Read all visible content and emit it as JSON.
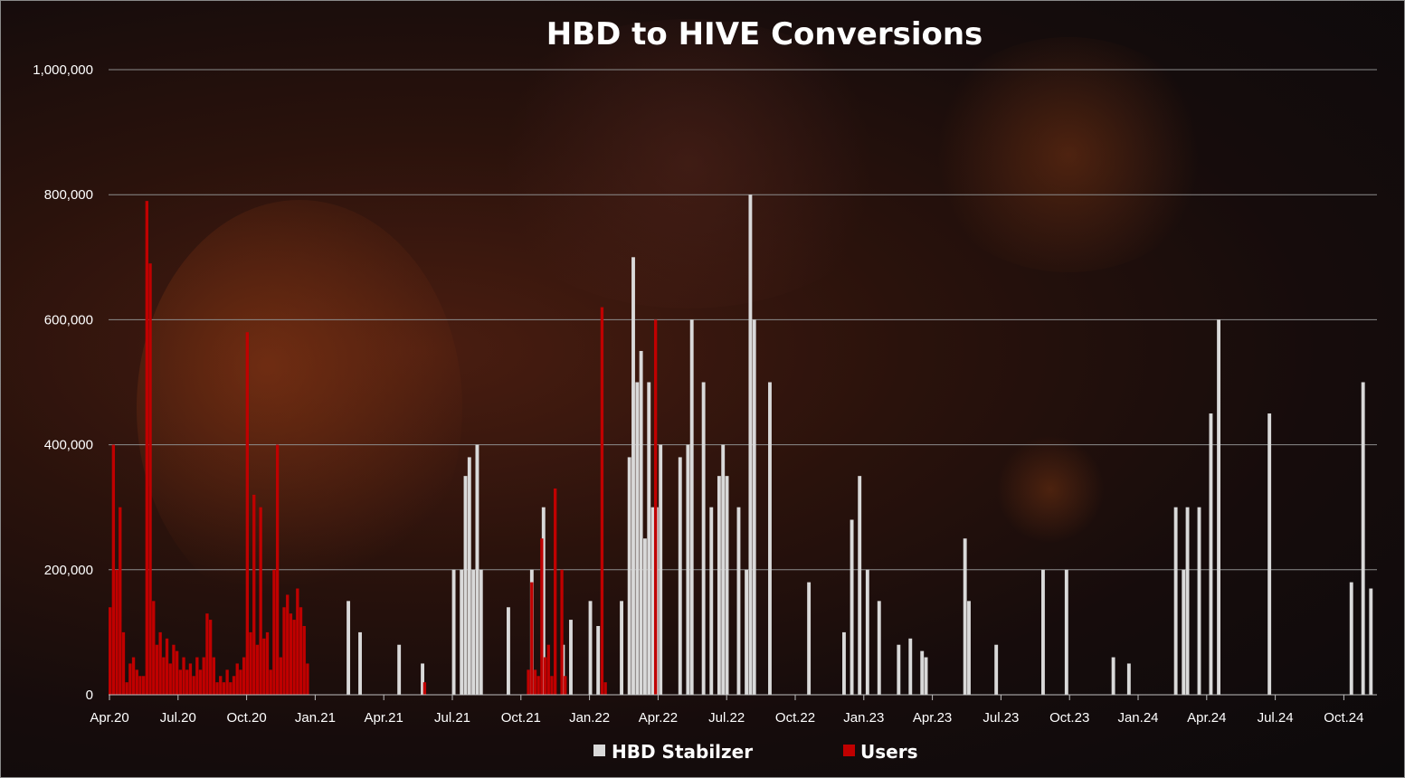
{
  "chart_data": {
    "type": "bar",
    "title": "HBD to HIVE Conversions",
    "xlabel": "",
    "ylabel": "",
    "ylim": [
      0,
      1000000
    ],
    "y_ticks": [
      "0",
      "200,000",
      "400,000",
      "600,000",
      "800,000",
      "1,000,000"
    ],
    "x_ticks": [
      "Apr.20",
      "Jul.20",
      "Oct.20",
      "Jan.21",
      "Apr.21",
      "Jul.21",
      "Oct.21",
      "Jan.22",
      "Apr.22",
      "Jul.22",
      "Oct.22",
      "Jan.23",
      "Apr.23",
      "Jul.23",
      "Oct.23",
      "Jan.24",
      "Apr.24",
      "Jul.24",
      "Oct.24"
    ],
    "grid": true,
    "legend_position": "bottom",
    "series": [
      {
        "name": "HBD Stabilzer",
        "color": "#d9d9d9",
        "approx_period_values": [
          0,
          0,
          0,
          0,
          0,
          0,
          0,
          0,
          0,
          0,
          0,
          0,
          0,
          0,
          0,
          0,
          0,
          0,
          0,
          0,
          0,
          0,
          0,
          0,
          0,
          0,
          0,
          0,
          0,
          0,
          0,
          0,
          0,
          0,
          0,
          0,
          0,
          0,
          0,
          0,
          0,
          0,
          0,
          0,
          0,
          0,
          0,
          0,
          0,
          0,
          0,
          0,
          0,
          0,
          0,
          0,
          0,
          0,
          0,
          0,
          0,
          150000,
          0,
          0,
          100000,
          0,
          0,
          0,
          0,
          0,
          0,
          0,
          0,
          0,
          80000,
          0,
          0,
          0,
          0,
          0,
          50000,
          0,
          0,
          0,
          0,
          0,
          0,
          0,
          200000,
          0,
          200000,
          350000,
          380000,
          200000,
          400000,
          200000,
          0,
          0,
          0,
          0,
          0,
          0,
          140000,
          0,
          0,
          0,
          0,
          0,
          200000,
          0,
          0,
          300000,
          0,
          0,
          0,
          0,
          80000,
          0,
          120000,
          0,
          0,
          0,
          0,
          150000,
          0,
          110000,
          0,
          0,
          0,
          0,
          0,
          150000,
          0,
          380000,
          700000,
          500000,
          550000,
          250000,
          500000,
          300000,
          300000,
          400000,
          0,
          0,
          0,
          0,
          380000,
          0,
          400000,
          600000,
          0,
          0,
          500000,
          0,
          300000,
          0,
          350000,
          400000,
          350000,
          0,
          0,
          300000,
          0,
          200000,
          800000,
          600000,
          0,
          0,
          0,
          500000,
          0,
          0,
          0,
          0,
          0,
          0,
          0,
          0,
          0,
          180000,
          0,
          0,
          0,
          0,
          0,
          0,
          0,
          0,
          100000,
          0,
          280000,
          0,
          350000,
          0,
          200000,
          0,
          0,
          150000,
          0,
          0,
          0,
          0,
          80000,
          0,
          0,
          90000,
          0,
          0,
          70000,
          60000,
          0,
          0,
          0,
          0,
          0,
          0,
          0,
          0,
          0,
          250000,
          150000,
          0,
          0,
          0,
          0,
          0,
          0,
          80000,
          0,
          0,
          0,
          0,
          0,
          0,
          0,
          0,
          0,
          0,
          0,
          200000,
          0,
          0,
          0,
          0,
          0,
          200000,
          0,
          0,
          0,
          0,
          0,
          0,
          0,
          0,
          0,
          0,
          0,
          60000,
          0,
          0,
          0,
          50000,
          0,
          0,
          0,
          0,
          0,
          0,
          0,
          0,
          0,
          0,
          0,
          300000,
          0,
          200000,
          300000,
          0,
          0,
          300000,
          0,
          0,
          450000,
          0,
          600000,
          0,
          0,
          0,
          0,
          0,
          0,
          0,
          0,
          0,
          0,
          0,
          0,
          450000,
          0,
          0,
          0,
          0,
          0,
          0,
          0,
          0,
          0,
          0,
          0,
          0,
          0,
          0,
          0,
          0,
          0,
          0,
          0,
          0,
          180000,
          0,
          0,
          500000,
          0,
          170000,
          0
        ]
      },
      {
        "name": "Users",
        "color": "#c00000",
        "approx_period_values": [
          140000,
          400000,
          200000,
          300000,
          100000,
          20000,
          50000,
          60000,
          40000,
          30000,
          30000,
          790000,
          690000,
          150000,
          80000,
          100000,
          60000,
          90000,
          50000,
          80000,
          70000,
          40000,
          60000,
          40000,
          50000,
          30000,
          60000,
          40000,
          60000,
          130000,
          120000,
          60000,
          20000,
          30000,
          20000,
          40000,
          20000,
          30000,
          50000,
          40000,
          60000,
          580000,
          100000,
          320000,
          80000,
          300000,
          90000,
          100000,
          40000,
          200000,
          400000,
          60000,
          140000,
          160000,
          130000,
          120000,
          170000,
          140000,
          110000,
          50000,
          0,
          0,
          0,
          0,
          0,
          0,
          0,
          0,
          0,
          0,
          0,
          0,
          0,
          0,
          0,
          0,
          0,
          0,
          0,
          0,
          0,
          0,
          0,
          0,
          0,
          0,
          0,
          0,
          0,
          0,
          0,
          0,
          0,
          0,
          20000,
          0,
          0,
          0,
          0,
          0,
          0,
          0,
          0,
          0,
          0,
          0,
          0,
          0,
          0,
          0,
          0,
          0,
          0,
          0,
          0,
          0,
          0,
          0,
          0,
          0,
          0,
          0,
          0,
          0,
          0,
          40000,
          180000,
          40000,
          30000,
          250000,
          60000,
          80000,
          30000,
          330000,
          0,
          200000,
          30000,
          0,
          0,
          0,
          0,
          0,
          0,
          0,
          0,
          0,
          0,
          620000,
          20000,
          0,
          0,
          0,
          0,
          0,
          0,
          0,
          0,
          0,
          0,
          0,
          0,
          0,
          0,
          600000,
          0,
          0,
          0,
          0,
          0,
          0,
          0,
          0,
          0,
          0,
          0,
          0,
          0,
          0,
          0,
          0,
          0,
          0,
          0,
          0,
          0,
          0,
          0,
          0,
          0,
          0,
          0,
          0,
          0,
          0,
          0,
          0,
          0,
          0,
          0,
          0,
          0,
          0,
          0,
          0,
          0,
          0,
          0,
          0,
          0,
          0,
          0,
          0,
          0,
          0,
          0,
          0,
          0,
          0,
          0,
          0,
          0,
          0,
          0,
          0,
          0,
          0,
          0,
          0,
          0,
          0,
          0,
          0,
          0,
          0,
          0,
          0,
          0,
          0,
          0,
          0,
          0,
          0,
          0,
          0,
          0,
          0,
          0,
          0,
          0,
          0,
          0,
          0,
          0,
          0,
          0,
          0,
          0,
          0,
          0,
          0,
          0,
          0,
          0,
          0,
          0,
          0,
          0,
          0,
          0,
          0,
          0,
          0,
          0,
          0,
          0,
          0,
          0,
          0,
          0,
          0,
          0,
          0,
          0,
          0,
          0,
          0,
          0,
          0,
          0,
          0,
          0,
          0,
          0,
          0,
          0,
          0,
          0,
          0,
          0,
          0,
          0,
          0,
          0,
          0,
          0,
          0,
          0,
          0,
          0,
          0,
          0,
          0,
          0,
          0,
          0,
          0,
          0,
          0,
          0,
          0,
          0,
          0,
          0,
          0,
          0,
          0,
          0,
          0,
          0,
          0,
          0,
          0,
          0,
          0,
          0,
          0,
          0,
          0,
          0,
          0,
          0,
          0,
          0,
          0,
          0,
          0,
          0,
          0,
          0,
          0,
          0,
          0,
          0,
          0,
          0,
          0,
          0,
          0,
          0,
          0,
          0,
          0,
          0,
          0,
          0,
          0,
          0,
          0,
          0,
          0,
          0,
          0,
          0,
          0,
          0,
          0,
          0,
          0,
          0
        ]
      }
    ]
  },
  "colors": {
    "background": "#140c0c",
    "grid": "#8c8c8c",
    "hbd_stabilizer": "#d9d9d9",
    "users": "#c00000",
    "text": "#ffffff"
  }
}
